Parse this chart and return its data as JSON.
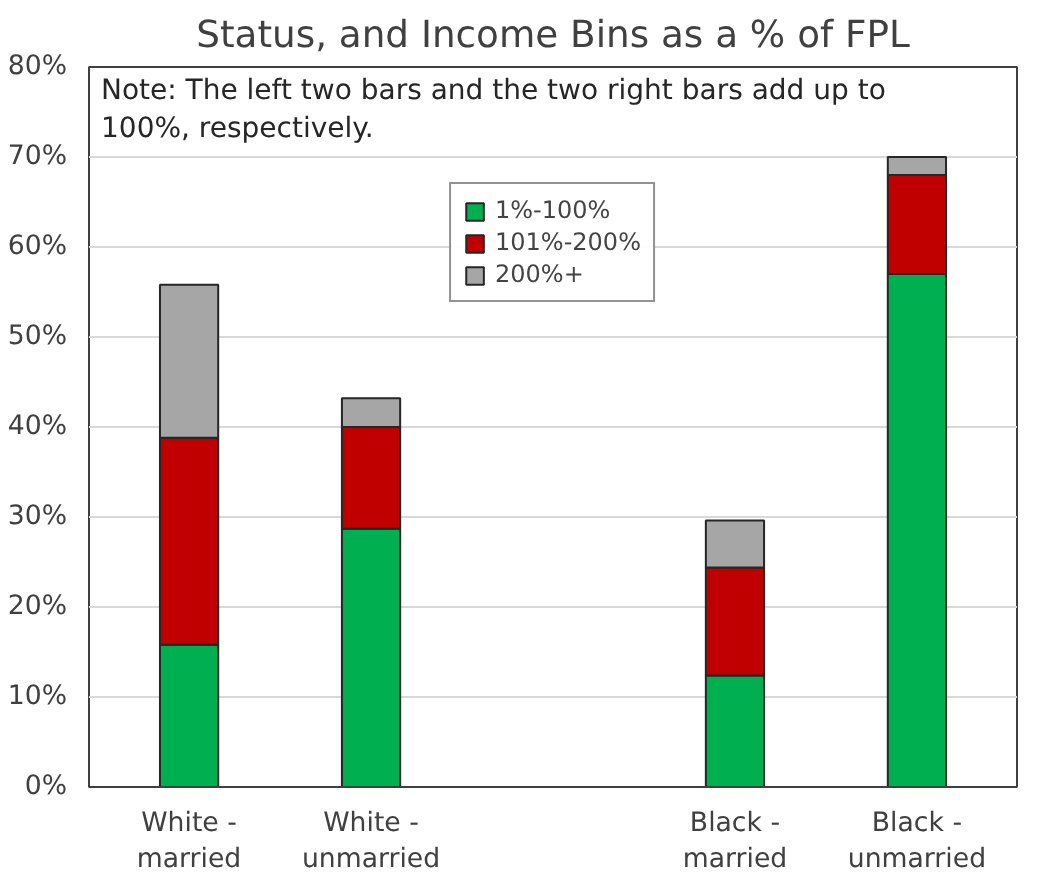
{
  "chart_data": {
    "type": "bar",
    "stacked": true,
    "title": "Status, and Income Bins as a % of FPL",
    "categories": [
      "White -\nmarried",
      "White -\nunmarried",
      null,
      "Black -\nmarried",
      "Black -\nunmarried"
    ],
    "series": [
      {
        "name": "1%-100%",
        "color": "#00b050",
        "values": [
          15.8,
          28.7,
          null,
          12.4,
          57.0
        ]
      },
      {
        "name": "101%-200%",
        "color": "#c00000",
        "values": [
          23.0,
          11.3,
          null,
          12.0,
          11.0
        ]
      },
      {
        "name": "200%+",
        "color": "#a6a6a6",
        "values": [
          17.0,
          3.2,
          null,
          5.2,
          2.0
        ]
      }
    ],
    "ylim": [
      0,
      80
    ],
    "yticks": [
      {
        "value": 0,
        "label": "0%"
      },
      {
        "value": 10,
        "label": "10%"
      },
      {
        "value": 20,
        "label": "20%"
      },
      {
        "value": 30,
        "label": "30%"
      },
      {
        "value": 40,
        "label": "40%"
      },
      {
        "value": 50,
        "label": "50%"
      },
      {
        "value": 60,
        "label": "60%"
      },
      {
        "value": 70,
        "label": "70%"
      },
      {
        "value": 80,
        "label": "80%"
      }
    ],
    "grid": "y",
    "legend": "top",
    "annotations": [
      "Note: The left two bars and the two right bars add up to 100%, respectively."
    ]
  }
}
